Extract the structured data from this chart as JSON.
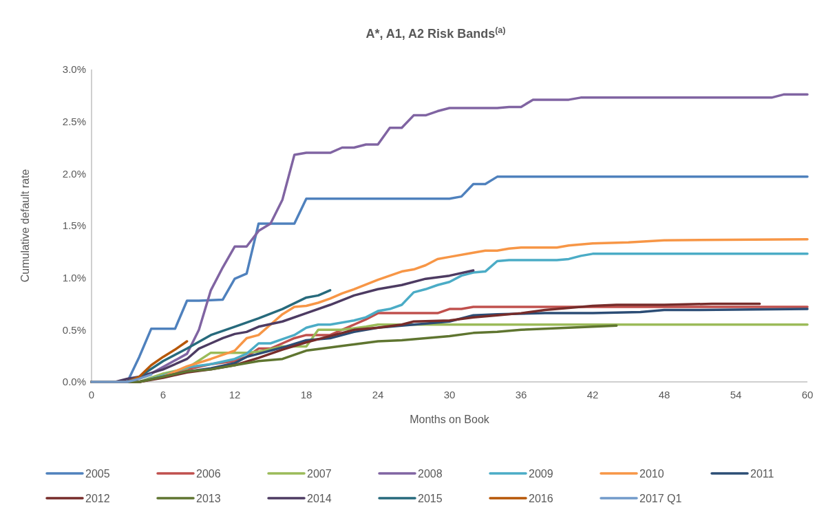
{
  "chart_data": {
    "type": "line",
    "title": "A*, A1, A2 Risk Bands$^{(a)}$",
    "xlabel": "Months on Book",
    "ylabel": "Cumulative default rate",
    "xlim": [
      0,
      60
    ],
    "xticks": [
      0,
      6,
      12,
      18,
      24,
      30,
      36,
      42,
      48,
      54,
      60
    ],
    "ylim": [
      0,
      3
    ],
    "yticks": [
      {
        "value": 0,
        "label": "0.0%"
      },
      {
        "value": 0.5,
        "label": "0.5%"
      },
      {
        "value": 1,
        "label": "1.0%"
      },
      {
        "value": 1.5,
        "label": "1.5%"
      },
      {
        "value": 2,
        "label": "2.0%"
      },
      {
        "value": 2.5,
        "label": "2.5%"
      },
      {
        "value": 3,
        "label": "3.0%"
      }
    ],
    "grid": false,
    "legend": "bottom",
    "marker": "none",
    "line_style": "solid",
    "series": [
      {
        "name": "2005",
        "color": "#4f81bd",
        "x": [
          0,
          3,
          4,
          5,
          7,
          8,
          9,
          11,
          12,
          13,
          14,
          17,
          18,
          30,
          31,
          32,
          33,
          34,
          60
        ],
        "values": [
          0,
          0,
          0.24,
          0.51,
          0.51,
          0.78,
          0.78,
          0.79,
          0.99,
          1.04,
          1.52,
          1.52,
          1.76,
          1.76,
          1.78,
          1.9,
          1.9,
          1.97,
          1.97
        ]
      },
      {
        "name": "2006",
        "color": "#c0504d",
        "x": [
          0,
          4,
          6,
          8,
          10,
          12,
          13,
          14,
          15,
          16,
          17,
          18,
          20,
          22,
          23,
          24,
          29,
          30,
          31,
          32,
          60
        ],
        "values": [
          0,
          0,
          0.06,
          0.12,
          0.17,
          0.2,
          0.24,
          0.32,
          0.32,
          0.37,
          0.42,
          0.45,
          0.45,
          0.55,
          0.6,
          0.66,
          0.66,
          0.7,
          0.7,
          0.72,
          0.72
        ]
      },
      {
        "name": "2007",
        "color": "#9bbb59",
        "x": [
          0,
          4,
          6,
          8,
          10,
          13,
          14,
          16,
          18,
          19,
          21,
          23,
          24,
          60
        ],
        "values": [
          0,
          0,
          0.08,
          0.13,
          0.28,
          0.28,
          0.29,
          0.34,
          0.34,
          0.5,
          0.5,
          0.53,
          0.55,
          0.55
        ]
      },
      {
        "name": "2008",
        "color": "#8064a2",
        "x": [
          0,
          3,
          5,
          8,
          9,
          10,
          11,
          12,
          13,
          14,
          15,
          16,
          17,
          18,
          20,
          21,
          22,
          23,
          24,
          25,
          26,
          27,
          28,
          29,
          30,
          34,
          35,
          36,
          37,
          40,
          41,
          57,
          58,
          60
        ],
        "values": [
          0,
          0,
          0.08,
          0.27,
          0.5,
          0.88,
          1.1,
          1.3,
          1.3,
          1.45,
          1.52,
          1.75,
          2.18,
          2.2,
          2.2,
          2.25,
          2.25,
          2.28,
          2.28,
          2.44,
          2.44,
          2.56,
          2.56,
          2.6,
          2.63,
          2.63,
          2.64,
          2.64,
          2.71,
          2.71,
          2.73,
          2.73,
          2.76,
          2.76
        ]
      },
      {
        "name": "2009",
        "color": "#4bacc6",
        "x": [
          0,
          4,
          6,
          8,
          10,
          12,
          13,
          14,
          15,
          16,
          17,
          18,
          19,
          20,
          22,
          23,
          24,
          25,
          26,
          27,
          28,
          29,
          30,
          31,
          32,
          33,
          34,
          35,
          39,
          40,
          41,
          42,
          60
        ],
        "values": [
          0,
          0,
          0.06,
          0.14,
          0.17,
          0.22,
          0.27,
          0.37,
          0.37,
          0.41,
          0.45,
          0.52,
          0.55,
          0.55,
          0.59,
          0.62,
          0.68,
          0.7,
          0.74,
          0.86,
          0.89,
          0.93,
          0.96,
          1.02,
          1.05,
          1.06,
          1.16,
          1.17,
          1.17,
          1.18,
          1.21,
          1.23,
          1.23
        ]
      },
      {
        "name": "2010",
        "color": "#f79646",
        "x": [
          0,
          4,
          6,
          8,
          10,
          12,
          13,
          14,
          15,
          16,
          17,
          18,
          19,
          20,
          21,
          22,
          24,
          25,
          26,
          27,
          28,
          29,
          30,
          32,
          33,
          34,
          35,
          36,
          39,
          40,
          41,
          42,
          45,
          48,
          60
        ],
        "values": [
          0,
          0,
          0.05,
          0.15,
          0.22,
          0.3,
          0.42,
          0.45,
          0.55,
          0.65,
          0.72,
          0.73,
          0.76,
          0.8,
          0.85,
          0.89,
          0.98,
          1.02,
          1.06,
          1.08,
          1.12,
          1.18,
          1.2,
          1.24,
          1.26,
          1.26,
          1.28,
          1.29,
          1.29,
          1.31,
          1.32,
          1.33,
          1.34,
          1.36,
          1.37
        ]
      },
      {
        "name": "2011",
        "color": "#2c4d75",
        "x": [
          0,
          4,
          6,
          8,
          10,
          12,
          13,
          14,
          16,
          18,
          20,
          22,
          24,
          26,
          28,
          30,
          32,
          34,
          38,
          42,
          46,
          48,
          50,
          60
        ],
        "values": [
          0,
          0,
          0.05,
          0.1,
          0.13,
          0.18,
          0.24,
          0.27,
          0.33,
          0.4,
          0.42,
          0.48,
          0.52,
          0.54,
          0.56,
          0.58,
          0.64,
          0.65,
          0.66,
          0.66,
          0.67,
          0.69,
          0.69,
          0.7
        ]
      },
      {
        "name": "2012",
        "color": "#772c2a",
        "x": [
          0,
          4,
          6,
          8,
          10,
          12,
          14,
          16,
          18,
          20,
          22,
          24,
          26,
          27,
          30,
          32,
          34,
          36,
          38,
          40,
          42,
          44,
          48,
          52,
          56
        ],
        "values": [
          0,
          0,
          0.04,
          0.09,
          0.12,
          0.16,
          0.23,
          0.31,
          0.38,
          0.44,
          0.5,
          0.52,
          0.55,
          0.58,
          0.59,
          0.62,
          0.64,
          0.66,
          0.69,
          0.71,
          0.73,
          0.74,
          0.74,
          0.75,
          0.75
        ]
      },
      {
        "name": "2013",
        "color": "#5f7530",
        "x": [
          0,
          4,
          6,
          8,
          10,
          12,
          14,
          16,
          18,
          20,
          22,
          24,
          26,
          28,
          30,
          32,
          34,
          36,
          38,
          40,
          42,
          44
        ],
        "values": [
          0,
          0,
          0.05,
          0.1,
          0.12,
          0.16,
          0.2,
          0.22,
          0.3,
          0.33,
          0.36,
          0.39,
          0.4,
          0.42,
          0.44,
          0.47,
          0.48,
          0.5,
          0.51,
          0.52,
          0.53,
          0.54
        ]
      },
      {
        "name": "2014",
        "color": "#4d3b62",
        "x": [
          0,
          2,
          3,
          4,
          6,
          8,
          9,
          10,
          11,
          12,
          13,
          14,
          16,
          18,
          20,
          22,
          24,
          26,
          28,
          30,
          32
        ],
        "values": [
          0,
          0,
          0.03,
          0.05,
          0.12,
          0.22,
          0.32,
          0.37,
          0.42,
          0.46,
          0.48,
          0.53,
          0.58,
          0.66,
          0.74,
          0.83,
          0.89,
          0.93,
          0.99,
          1.02,
          1.07
        ]
      },
      {
        "name": "2015",
        "color": "#276a7c",
        "x": [
          0,
          3,
          4,
          6,
          8,
          10,
          12,
          14,
          16,
          18,
          19,
          20
        ],
        "values": [
          0,
          0,
          0.05,
          0.2,
          0.32,
          0.45,
          0.53,
          0.61,
          0.7,
          0.81,
          0.83,
          0.88
        ]
      },
      {
        "name": "2016",
        "color": "#b65708",
        "x": [
          0,
          3,
          4,
          5,
          6,
          7,
          8
        ],
        "values": [
          0,
          0,
          0.05,
          0.16,
          0.24,
          0.31,
          0.39
        ]
      },
      {
        "name": "2017 Q1",
        "color": "#729aca",
        "x": [
          0,
          3,
          4,
          5
        ],
        "values": [
          0,
          0,
          0.03,
          0.07
        ]
      }
    ]
  }
}
